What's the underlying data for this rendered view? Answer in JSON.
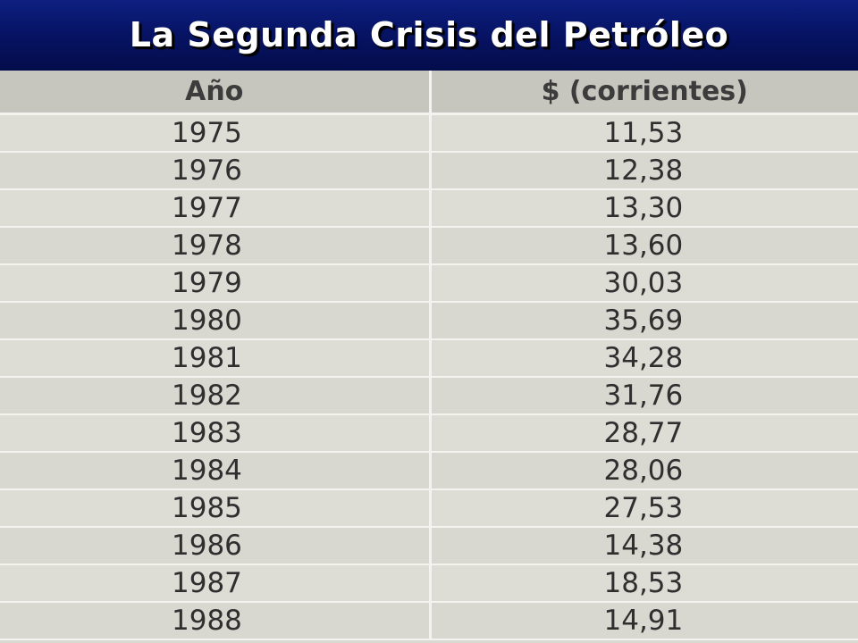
{
  "title": "La Segunda Crisis del Petróleo",
  "table": {
    "headers": [
      "Año",
      "$ (corrientes)"
    ],
    "rows": [
      [
        "1975",
        "11,53"
      ],
      [
        "1976",
        "12,38"
      ],
      [
        "1977",
        "13,30"
      ],
      [
        "1978",
        "13,60"
      ],
      [
        "1979",
        "30,03"
      ],
      [
        "1980",
        "35,69"
      ],
      [
        "1981",
        "34,28"
      ],
      [
        "1982",
        "31,76"
      ],
      [
        "1983",
        "28,77"
      ],
      [
        "1984",
        "28,06"
      ],
      [
        "1985",
        "27,53"
      ],
      [
        "1986",
        "14,38"
      ],
      [
        "1987",
        "18,53"
      ],
      [
        "1988",
        "14,91"
      ]
    ]
  },
  "colors": {
    "header_band": "#071466",
    "title_text": "#ffffff",
    "table_background": "#dddcd5",
    "table_header_background": "#c7c6be",
    "grid_lines": "#f3f3ef"
  }
}
